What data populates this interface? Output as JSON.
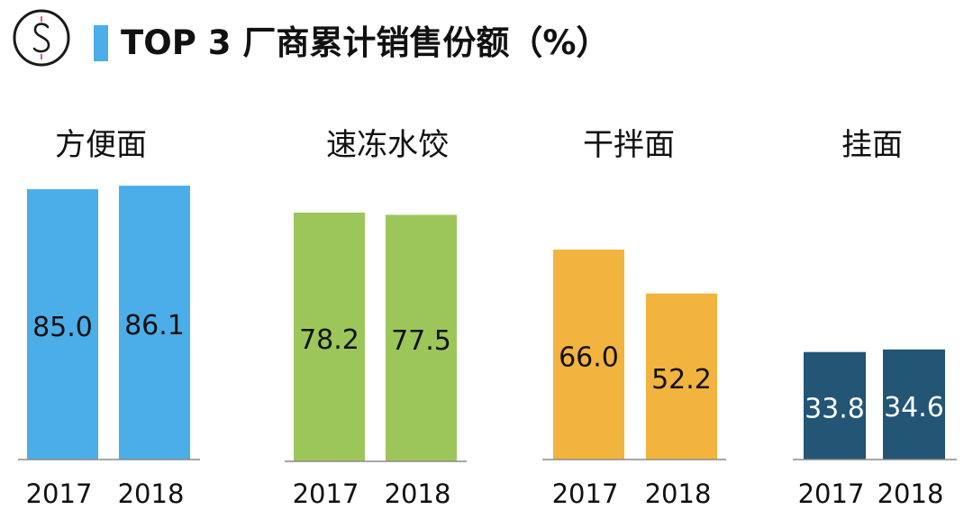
{
  "header": {
    "title": "TOP 3 厂商累计销售份额（%）",
    "accent_color": "#4BAEE8",
    "logo_icon": "dollar-sign-icon"
  },
  "chart_data": [
    {
      "type": "bar",
      "title": "方便面",
      "categories": [
        "2017",
        "2018"
      ],
      "values": [
        85.0,
        86.1
      ],
      "color": "#4BAEE8",
      "label_color": "#111111"
    },
    {
      "type": "bar",
      "title": "速冻水饺",
      "categories": [
        "2017",
        "2018"
      ],
      "values": [
        78.2,
        77.5
      ],
      "color": "#9CC65A",
      "label_color": "#111111"
    },
    {
      "type": "bar",
      "title": "干拌面",
      "categories": [
        "2017",
        "2018"
      ],
      "values": [
        66.0,
        52.2
      ],
      "color": "#F2B43E",
      "label_color": "#111111"
    },
    {
      "type": "bar",
      "title": "挂面",
      "categories": [
        "2017",
        "2018"
      ],
      "values": [
        33.8,
        34.6
      ],
      "color": "#235574",
      "label_color": "#ffffff"
    }
  ]
}
